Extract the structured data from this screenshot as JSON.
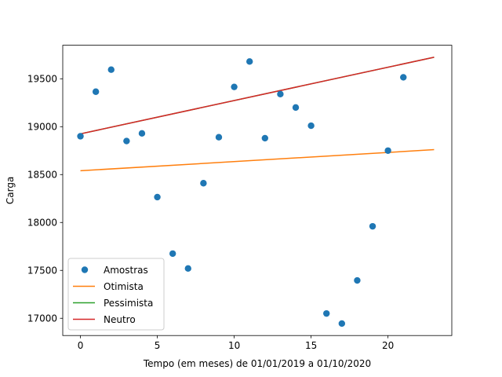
{
  "chart_data": {
    "type": "scatter",
    "xlabel": "Tempo (em meses) de 01/01/2019 a 01/10/2020",
    "ylabel": "Carga",
    "xlim": [
      -1.15,
      24.15
    ],
    "ylim": [
      16820,
      19850
    ],
    "x_ticks": [
      0,
      5,
      10,
      15,
      20
    ],
    "y_ticks": [
      17000,
      17500,
      18000,
      18500,
      19000,
      19500
    ],
    "grid": false,
    "legend_position": "lower-left",
    "series": [
      {
        "name": "Amostras",
        "kind": "scatter",
        "color": "#1f77b4",
        "x": [
          0,
          1,
          2,
          3,
          4,
          5,
          6,
          7,
          8,
          9,
          10,
          11,
          12,
          13,
          14,
          15,
          16,
          17,
          18,
          19,
          20,
          21
        ],
        "y": [
          18900,
          19365,
          19595,
          18850,
          18930,
          18265,
          17675,
          17520,
          18410,
          18890,
          19415,
          19680,
          18880,
          19340,
          19200,
          19010,
          17050,
          16945,
          17395,
          17960,
          18750,
          19515
        ]
      },
      {
        "name": "Otimista",
        "kind": "line",
        "color": "#ff7f0e",
        "x": [
          0,
          23
        ],
        "y": [
          18540,
          18760
        ]
      },
      {
        "name": "Pessimista",
        "kind": "line",
        "color": "#2ca02c",
        "x": [
          0,
          23
        ],
        "y": [
          18925,
          19725
        ]
      },
      {
        "name": "Neutro",
        "kind": "line",
        "color": "#d62728",
        "x": [
          0,
          23
        ],
        "y": [
          18925,
          19725
        ]
      }
    ]
  }
}
